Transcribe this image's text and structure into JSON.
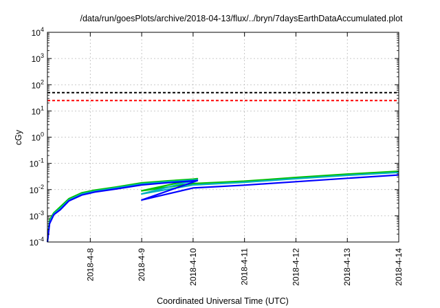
{
  "chart_data": {
    "type": "line",
    "title": "/data/run/goesPlots/archive/2018-04-13/flux/../bryn/7daysEarthDataAccumulated.plot",
    "xlabel": "Coordinated Universal Time (UTC)",
    "ylabel": "cGy",
    "yscale": "log",
    "ylim": [
      0.0001,
      10000
    ],
    "xlim": [
      "2018-04-07T04:00",
      "2018-04-14T00:00"
    ],
    "grid": true,
    "y_ticks": [
      {
        "base": "10",
        "exp": "-4"
      },
      {
        "base": "10",
        "exp": "-3"
      },
      {
        "base": "10",
        "exp": "-2"
      },
      {
        "base": "10",
        "exp": "-1"
      },
      {
        "base": "10",
        "exp": "0"
      },
      {
        "base": "10",
        "exp": "1"
      },
      {
        "base": "10",
        "exp": "2"
      },
      {
        "base": "10",
        "exp": "3"
      },
      {
        "base": "10",
        "exp": "4"
      }
    ],
    "x_ticks": [
      "2018-4-8",
      "2018-4-9",
      "2018-4-10",
      "2018-4-11",
      "2018-4-12",
      "2018-4-13",
      "2018-4-14"
    ],
    "thresholds": [
      {
        "value": 50,
        "color": "#000000",
        "style": "dashed"
      },
      {
        "value": 25,
        "color": "#ff0000",
        "style": "dashed"
      }
    ],
    "series": [
      {
        "color": "#00c000",
        "points": [
          [
            "2018-04-07T04:00",
            0.0001
          ],
          [
            "2018-04-07T05:00",
            0.0007
          ],
          [
            "2018-04-07T07:00",
            0.0013
          ],
          [
            "2018-04-07T10:00",
            0.0022
          ],
          [
            "2018-04-07T14:00",
            0.0045
          ],
          [
            "2018-04-07T20:00",
            0.0075
          ],
          [
            "2018-04-08T02:00",
            0.0095
          ],
          [
            "2018-04-08T12:00",
            0.0125
          ],
          [
            "2018-04-09T00:00",
            0.018
          ],
          [
            "2018-04-09T12:00",
            0.0215
          ],
          [
            "2018-04-10T00:00",
            0.025
          ],
          [
            "2018-04-10T02:00",
            0.026
          ],
          [
            "2018-04-09T00:00",
            0.009
          ],
          [
            "2018-04-10T00:00",
            0.017
          ],
          [
            "2018-04-11T00:00",
            0.021
          ],
          [
            "2018-04-12T00:00",
            0.029
          ],
          [
            "2018-04-13T00:00",
            0.039
          ],
          [
            "2018-04-14T00:00",
            0.05
          ]
        ]
      },
      {
        "color": "#00b0c0",
        "points": [
          [
            "2018-04-07T04:00",
            0.0001
          ],
          [
            "2018-04-07T05:00",
            0.0006
          ],
          [
            "2018-04-07T07:00",
            0.0012
          ],
          [
            "2018-04-07T10:00",
            0.0019
          ],
          [
            "2018-04-07T14:00",
            0.004
          ],
          [
            "2018-04-07T20:00",
            0.0068
          ],
          [
            "2018-04-08T02:00",
            0.0087
          ],
          [
            "2018-04-08T12:00",
            0.0115
          ],
          [
            "2018-04-09T00:00",
            0.0165
          ],
          [
            "2018-04-09T12:00",
            0.0198
          ],
          [
            "2018-04-10T00:00",
            0.0232
          ],
          [
            "2018-04-10T02:00",
            0.024
          ],
          [
            "2018-04-09T00:00",
            0.0068
          ],
          [
            "2018-04-10T00:00",
            0.015
          ],
          [
            "2018-04-11T00:00",
            0.019
          ],
          [
            "2018-04-12T00:00",
            0.026
          ],
          [
            "2018-04-13T00:00",
            0.035
          ],
          [
            "2018-04-14T00:00",
            0.045
          ]
        ]
      },
      {
        "color": "#0000ff",
        "points": [
          [
            "2018-04-07T04:00",
            0.0001
          ],
          [
            "2018-04-07T05:00",
            0.0005
          ],
          [
            "2018-04-07T07:00",
            0.0011
          ],
          [
            "2018-04-07T10:00",
            0.0017
          ],
          [
            "2018-04-07T14:00",
            0.0037
          ],
          [
            "2018-04-07T20:00",
            0.0062
          ],
          [
            "2018-04-08T02:00",
            0.008
          ],
          [
            "2018-04-08T12:00",
            0.0105
          ],
          [
            "2018-04-09T00:00",
            0.015
          ],
          [
            "2018-04-09T12:00",
            0.0182
          ],
          [
            "2018-04-10T00:00",
            0.0215
          ],
          [
            "2018-04-10T02:00",
            0.022
          ],
          [
            "2018-04-09T00:00",
            0.004
          ],
          [
            "2018-04-10T00:00",
            0.0115
          ],
          [
            "2018-04-11T00:00",
            0.0148
          ],
          [
            "2018-04-12T00:00",
            0.02
          ],
          [
            "2018-04-13T00:00",
            0.027
          ],
          [
            "2018-04-14T00:00",
            0.036
          ]
        ]
      }
    ]
  }
}
